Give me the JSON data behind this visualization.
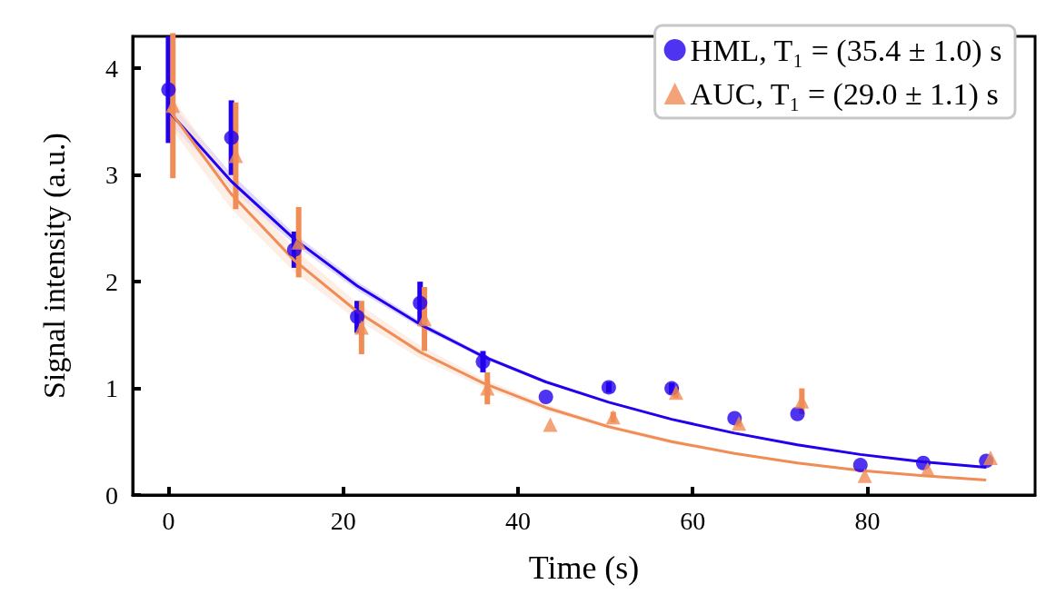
{
  "chart_data": {
    "type": "scatter",
    "xlabel": "Time (s)",
    "ylabel": "Signal intensity (a.u.)",
    "xlim": [
      -4.1,
      99.2
    ],
    "xticks": [
      0,
      20,
      40,
      60,
      80
    ],
    "ylim": [
      0,
      4.3
    ],
    "yticks": [
      0,
      1,
      2,
      3,
      4
    ],
    "grid": false,
    "legend": "top right",
    "series": [
      {
        "type": "line",
        "color": "#2200ee",
        "marker": "none",
        "x": [
          0,
          7.2,
          14.4,
          21.6,
          28.8,
          36,
          43.2,
          50.4,
          57.6,
          64.8,
          72,
          79.2,
          86.4,
          93.6
        ],
        "values": [
          3.6,
          2.94,
          2.4,
          1.96,
          1.6,
          1.3,
          1.06,
          0.87,
          0.71,
          0.58,
          0.47,
          0.38,
          0.31,
          0.26
        ],
        "lower": [
          3.5,
          2.87,
          2.35,
          1.92,
          1.57,
          1.28,
          1.05,
          0.86,
          0.7,
          0.57,
          0.46,
          0.37,
          0.3,
          0.25
        ],
        "upper": [
          3.7,
          3.01,
          2.45,
          2.0,
          1.63,
          1.32,
          1.07,
          0.88,
          0.72,
          0.59,
          0.48,
          0.39,
          0.32,
          0.27
        ]
      },
      {
        "type": "line",
        "color": "#f08c55",
        "marker": "none",
        "x": [
          0,
          7.2,
          14.4,
          21.6,
          28.8,
          36,
          43.2,
          50.4,
          57.6,
          64.8,
          72,
          79.2,
          86.4,
          93.6
        ],
        "values": [
          3.62,
          2.82,
          2.2,
          1.72,
          1.34,
          1.05,
          0.82,
          0.64,
          0.5,
          0.39,
          0.3,
          0.23,
          0.18,
          0.14
        ],
        "lower": [
          3.47,
          2.68,
          2.09,
          1.64,
          1.28,
          1.01,
          0.79,
          0.62,
          0.48,
          0.38,
          0.29,
          0.22,
          0.17,
          0.13
        ],
        "upper": [
          3.77,
          2.96,
          2.31,
          1.8,
          1.4,
          1.09,
          0.85,
          0.66,
          0.52,
          0.4,
          0.31,
          0.24,
          0.19,
          0.15
        ]
      },
      {
        "name": "HML, T₁ = (35.4 ± 1.0) s",
        "color": "#2200ee",
        "marker": "circle",
        "x": [
          0,
          7.2,
          14.4,
          21.6,
          28.8,
          36,
          43.2,
          50.4,
          57.6,
          64.8,
          72,
          79.2,
          86.4,
          93.6
        ],
        "values": [
          3.8,
          3.35,
          2.3,
          1.67,
          1.8,
          1.25,
          0.92,
          1.01,
          1.0,
          0.72,
          0.76,
          0.28,
          0.3,
          0.32
        ],
        "errors": [
          0.5,
          0.35,
          0.17,
          0.15,
          0.2,
          0.1,
          null,
          0.05,
          0.05,
          null,
          null,
          null,
          null,
          null
        ]
      },
      {
        "name": "AUC, T₁ = (29.0 ± 1.1) s",
        "color": "#f08c55",
        "marker": "triangle",
        "x": [
          0.5,
          7.7,
          14.9,
          22.1,
          29.3,
          36.5,
          43.7,
          50.9,
          58.1,
          65.3,
          72.5,
          79.7,
          86.9,
          94.1
        ],
        "values": [
          3.65,
          3.18,
          2.37,
          1.57,
          1.65,
          1.0,
          0.66,
          0.73,
          0.96,
          0.67,
          0.88,
          0.18,
          0.24,
          0.35
        ],
        "errors": [
          0.68,
          0.5,
          0.33,
          0.25,
          0.3,
          0.15,
          null,
          0.05,
          0.05,
          0.03,
          0.12,
          null,
          null,
          null
        ]
      }
    ]
  }
}
